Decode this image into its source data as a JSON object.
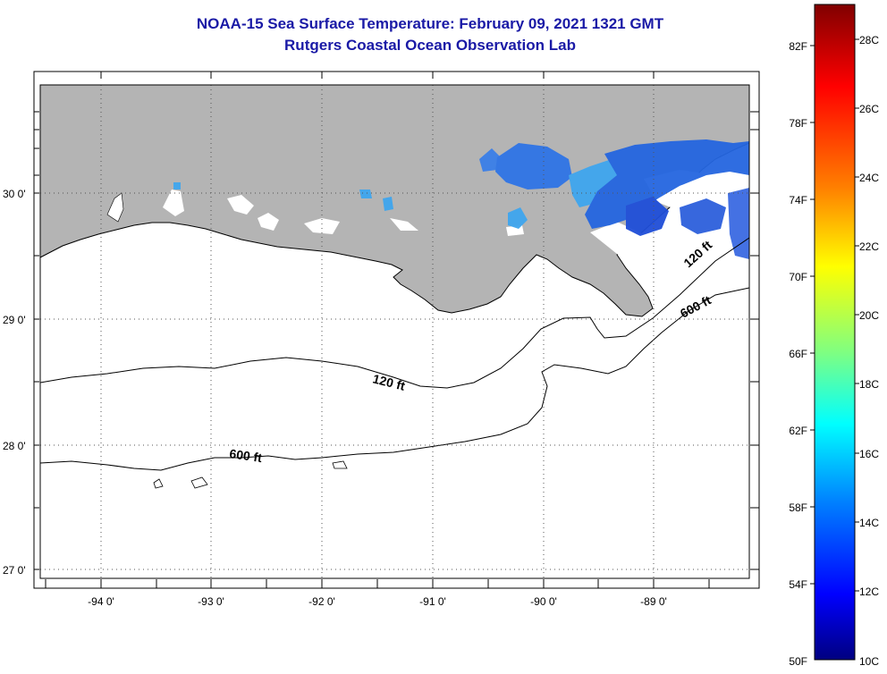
{
  "title": "NOAA-15 Sea Surface Temperature:  February 09, 2021 1321 GMT",
  "subtitle": "Rutgers Coastal Ocean Observation Lab",
  "map": {
    "lon_ticks": [
      "-94 0'",
      "-93 0'",
      "-92 0'",
      "-91 0'",
      "-90 0'",
      "-89 0'"
    ],
    "lat_ticks": [
      "30 0'",
      "29 0'",
      "28 0'",
      "27 0'"
    ],
    "contours": [
      {
        "label": "120 ft"
      },
      {
        "label": "600 ft"
      },
      {
        "label": "120 ft"
      },
      {
        "label": "600 ft"
      }
    ],
    "land_color": "#b4b4b4",
    "water_color": "#ffffff"
  },
  "colorbar": {
    "f_labels": [
      "82F",
      "78F",
      "74F",
      "70F",
      "66F",
      "62F",
      "58F",
      "54F",
      "50F"
    ],
    "c_labels": [
      "28C",
      "26C",
      "24C",
      "22C",
      "20C",
      "18C",
      "16C",
      "14C",
      "12C",
      "10C"
    ],
    "gradient": [
      "#800000",
      "#ff0000",
      "#ff8000",
      "#ffff00",
      "#80ff80",
      "#00ffff",
      "#0080ff",
      "#0000ff",
      "#000080"
    ]
  }
}
